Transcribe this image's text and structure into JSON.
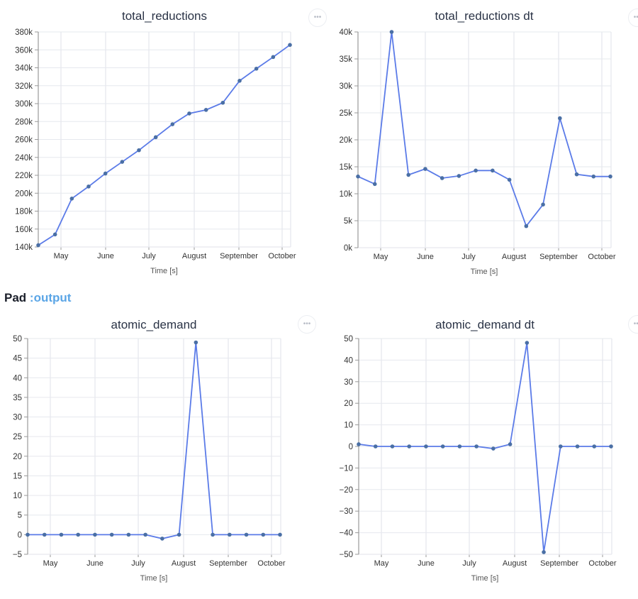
{
  "section": {
    "label": "Pad",
    "accent": ":output"
  },
  "colors": {
    "line": "#5b7be8",
    "marker": "#4a6fa5",
    "grid": "#e6e8ee",
    "axis": "#999999",
    "accent": "#5aa5e6"
  },
  "more_button_icon": "ellipsis-icon",
  "more_button_label": "•••",
  "charts": [
    {
      "title": "total_reductions",
      "xlabel": "Time [s]"
    },
    {
      "title": "total_reductions dt",
      "xlabel": "Time [s]"
    },
    {
      "title": "atomic_demand",
      "xlabel": "Time [s]"
    },
    {
      "title": "atomic_demand dt",
      "xlabel": "Time [s]"
    }
  ],
  "chart_data": [
    {
      "type": "line",
      "title": "total_reductions",
      "xlabel": "Time [s]",
      "ylabel": "",
      "x_tick_labels": [
        "May",
        "June",
        "July",
        "August",
        "September",
        "October"
      ],
      "y_tick_labels": [
        "140k",
        "160k",
        "180k",
        "200k",
        "220k",
        "240k",
        "260k",
        "280k",
        "300k",
        "320k",
        "340k",
        "360k",
        "380k"
      ],
      "ylim": [
        140000,
        380000
      ],
      "grid": true,
      "series": [
        {
          "name": "total_reductions",
          "values": [
            142000,
            154000,
            194000,
            207500,
            222000,
            235000,
            248000,
            262500,
            277000,
            289000,
            293000,
            301000,
            325500,
            339000,
            352000,
            365500
          ]
        }
      ]
    },
    {
      "type": "line",
      "title": "total_reductions dt",
      "xlabel": "Time [s]",
      "ylabel": "",
      "x_tick_labels": [
        "May",
        "June",
        "July",
        "August",
        "September",
        "October"
      ],
      "y_tick_labels": [
        "0k",
        "5k",
        "10k",
        "15k",
        "20k",
        "25k",
        "30k",
        "35k",
        "40k"
      ],
      "ylim": [
        0,
        40000
      ],
      "grid": true,
      "series": [
        {
          "name": "total_reductions dt",
          "values": [
            13200,
            11800,
            40000,
            13500,
            14600,
            12900,
            13300,
            14300,
            14300,
            12600,
            4000,
            8000,
            24000,
            13600,
            13200,
            13200
          ]
        }
      ]
    },
    {
      "type": "line",
      "title": "atomic_demand",
      "xlabel": "Time [s]",
      "ylabel": "",
      "x_tick_labels": [
        "May",
        "June",
        "July",
        "August",
        "September",
        "October"
      ],
      "y_tick_labels": [
        "-5",
        "0",
        "5",
        "10",
        "15",
        "20",
        "25",
        "30",
        "35",
        "40",
        "45",
        "50"
      ],
      "ylim": [
        -5,
        50
      ],
      "grid": true,
      "series": [
        {
          "name": "atomic_demand",
          "values": [
            0,
            0,
            0,
            0,
            0,
            0,
            0,
            0,
            -1,
            0,
            49,
            0,
            0,
            0,
            0,
            0
          ]
        }
      ]
    },
    {
      "type": "line",
      "title": "atomic_demand dt",
      "xlabel": "Time [s]",
      "ylabel": "",
      "x_tick_labels": [
        "May",
        "June",
        "July",
        "August",
        "September",
        "October"
      ],
      "y_tick_labels": [
        "-50",
        "-40",
        "-30",
        "-20",
        "-10",
        "0",
        "10",
        "20",
        "30",
        "40",
        "50"
      ],
      "ylim": [
        -50,
        50
      ],
      "grid": true,
      "series": [
        {
          "name": "atomic_demand dt",
          "values": [
            1,
            0,
            0,
            0,
            0,
            0,
            0,
            0,
            -1,
            1,
            48,
            -49,
            0,
            0,
            0,
            0
          ]
        }
      ]
    }
  ]
}
